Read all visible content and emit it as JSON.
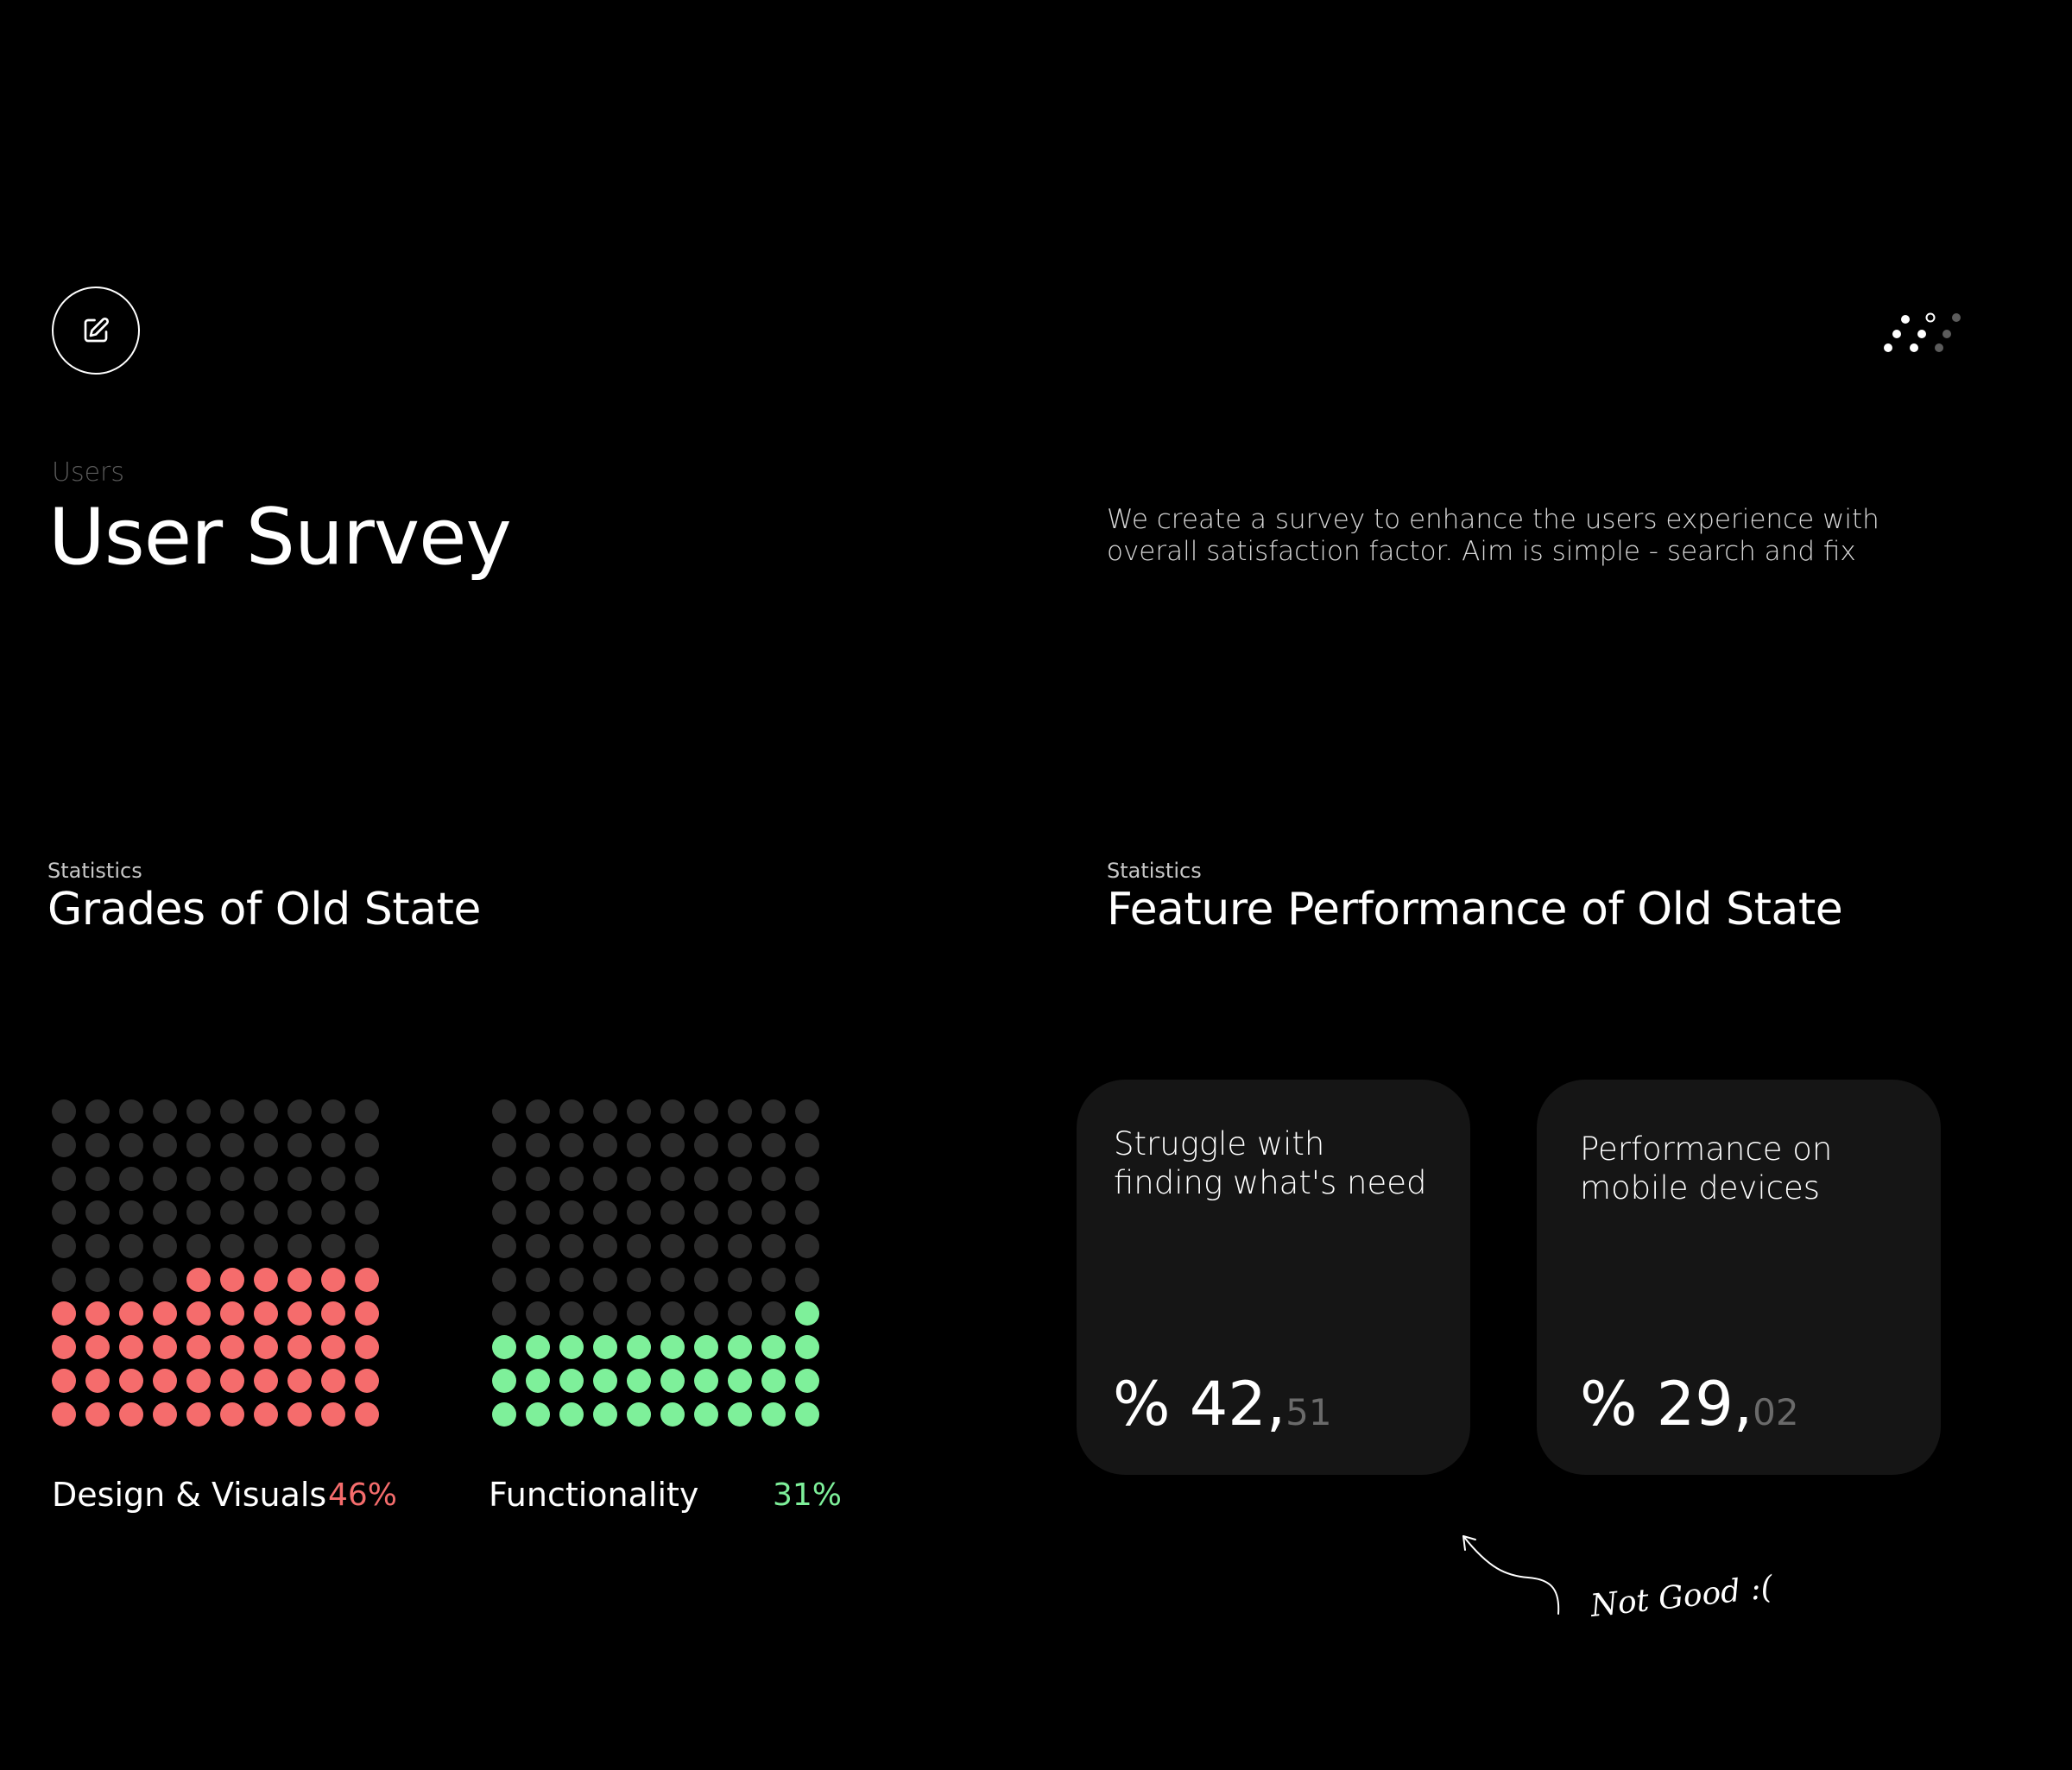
{
  "header": {
    "edit_icon": "pencil-square-icon",
    "logo_icon": "dots-logo-icon",
    "breadcrumb": "Users",
    "title": "User Survey",
    "description": "We create a survey to enhance the users experience with overall satisfaction factor. Aim is simple - search and fix"
  },
  "grades": {
    "tag": "Statistics",
    "title": "Grades of Old State",
    "items": [
      {
        "label": "Design & Visuals",
        "percent_text": "46%",
        "filled_dots": 46,
        "color": "#f56c6c"
      },
      {
        "label": "Functionality",
        "percent_text": "31%",
        "filled_dots": 31,
        "color": "#7ef09a"
      }
    ]
  },
  "features": {
    "tag": "Statistics",
    "title": "Feature Performance of Old State",
    "cards": [
      {
        "text": "Struggle with finding what's need",
        "value_main": "% 42,",
        "value_decimal": "51"
      },
      {
        "text": "Performance on mobile devices",
        "value_main": "% 29,",
        "value_decimal": "02"
      }
    ]
  },
  "annotation": {
    "text": "Not Good :("
  },
  "colors": {
    "background": "#000000",
    "dot_empty": "#2b2b2b",
    "card_bg": "#151515",
    "red": "#f56c6c",
    "green": "#7ef09a"
  }
}
